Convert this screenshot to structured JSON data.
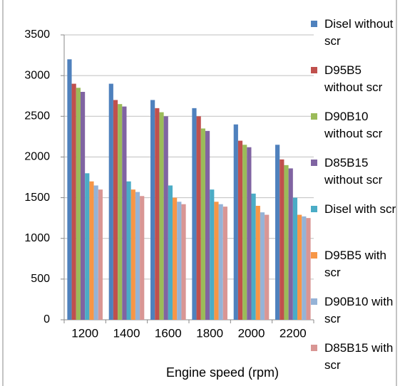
{
  "chart_data": {
    "type": "bar",
    "xlabel": "Engine speed (rpm)",
    "categories": [
      "1200",
      "1400",
      "1600",
      "1800",
      "2000",
      "2200"
    ],
    "series": [
      {
        "name": "Disel without scr",
        "color": "#4f81bd",
        "values": [
          3200,
          2900,
          2700,
          2600,
          2400,
          2150
        ]
      },
      {
        "name": "D95B5 without scr",
        "color": "#c0504d",
        "values": [
          2900,
          2700,
          2600,
          2500,
          2200,
          1970
        ]
      },
      {
        "name": "D90B10 without scr",
        "color": "#9bbb59",
        "values": [
          2850,
          2650,
          2550,
          2350,
          2150,
          1900
        ]
      },
      {
        "name": "D85B15 without scr",
        "color": "#8064a2",
        "values": [
          2800,
          2620,
          2500,
          2320,
          2120,
          1860
        ]
      },
      {
        "name": "Disel with scr",
        "color": "#4bacc6",
        "values": [
          1800,
          1700,
          1650,
          1600,
          1550,
          1500
        ]
      },
      {
        "name": "D95B5 with scr",
        "color": "#f79646",
        "values": [
          1700,
          1600,
          1500,
          1450,
          1400,
          1290
        ]
      },
      {
        "name": "D90B10 with scr",
        "color": "#95b3d7",
        "values": [
          1650,
          1570,
          1450,
          1420,
          1320,
          1270
        ]
      },
      {
        "name": "D85B15 with scr",
        "color": "#d99694",
        "values": [
          1600,
          1520,
          1420,
          1390,
          1290,
          1250
        ]
      }
    ],
    "ylim": [
      0,
      3500
    ],
    "yticks": [
      0,
      500,
      1000,
      1500,
      2000,
      2500,
      3000,
      3500
    ],
    "grid": true
  }
}
